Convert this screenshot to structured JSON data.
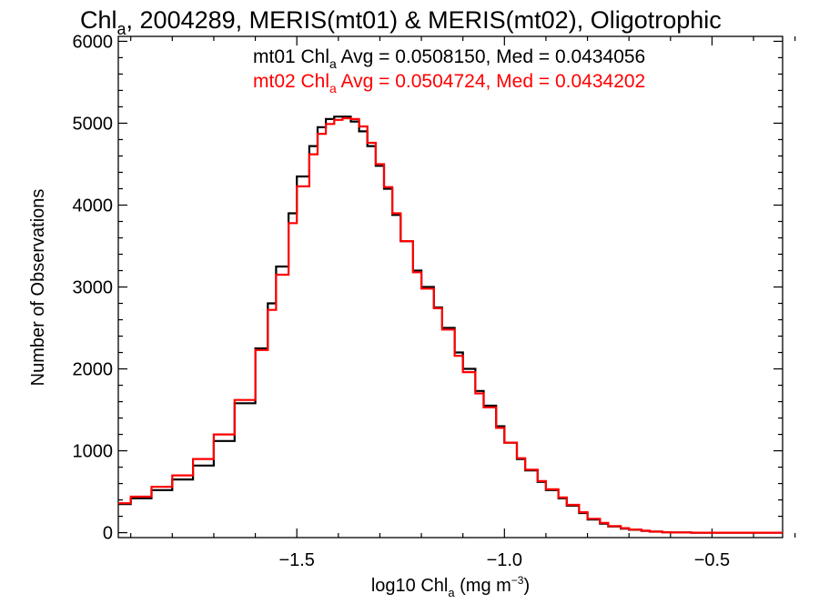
{
  "chart_data": {
    "type": "line",
    "title": {
      "main": "Chl",
      "sub": "a",
      "rest": ", 2004289, MERIS(mt01) & MERIS(mt02), Oligotrophic"
    },
    "xlabel": {
      "main": "log10 Chl",
      "sub": "a",
      "unit_pre": " (mg m",
      "sup": "−3",
      "unit_post": ")"
    },
    "ylabel": "Number of Observations",
    "xlim": [
      -1.93,
      -0.33
    ],
    "ylim": [
      -60,
      6060
    ],
    "xticks": [
      {
        "v": -1.5,
        "label": "−1.5"
      },
      {
        "v": -1.0,
        "label": "−1.0"
      },
      {
        "v": -0.5,
        "label": "−0.5"
      }
    ],
    "yticks": [
      {
        "v": 0,
        "label": "0"
      },
      {
        "v": 1000,
        "label": "1000"
      },
      {
        "v": 2000,
        "label": "2000"
      },
      {
        "v": 3000,
        "label": "3000"
      },
      {
        "v": 4000,
        "label": "4000"
      },
      {
        "v": 5000,
        "label": "5000"
      },
      {
        "v": 6000,
        "label": "6000"
      }
    ],
    "annotations": [
      {
        "pre": "mt01 Chl",
        "sub": "a",
        "post": " Avg = 0.0508150, Med = 0.0434056",
        "color": "#000000"
      },
      {
        "pre": "mt02 Chl",
        "sub": "a",
        "post": " Avg = 0.0504724, Med = 0.0434202",
        "color": "#ff0000"
      }
    ],
    "series": [
      {
        "name": "mt01",
        "color": "#000000",
        "x": [
          -1.93,
          -1.9,
          -1.85,
          -1.8,
          -1.75,
          -1.7,
          -1.65,
          -1.6,
          -1.57,
          -1.55,
          -1.52,
          -1.5,
          -1.47,
          -1.45,
          -1.43,
          -1.41,
          -1.39,
          -1.37,
          -1.35,
          -1.33,
          -1.31,
          -1.29,
          -1.27,
          -1.25,
          -1.22,
          -1.2,
          -1.17,
          -1.15,
          -1.12,
          -1.1,
          -1.07,
          -1.05,
          -1.02,
          -1.0,
          -0.97,
          -0.95,
          -0.92,
          -0.9,
          -0.87,
          -0.85,
          -0.82,
          -0.8,
          -0.77,
          -0.75,
          -0.72,
          -0.7,
          -0.67,
          -0.65,
          -0.62,
          -0.6,
          -0.55,
          -0.5,
          -0.45,
          -0.4,
          -0.33
        ],
        "y": [
          350,
          420,
          520,
          650,
          820,
          1120,
          1580,
          2250,
          2800,
          3250,
          3900,
          4350,
          4720,
          4950,
          5050,
          5080,
          5080,
          5020,
          4900,
          4720,
          4480,
          4200,
          3880,
          3560,
          3200,
          3000,
          2750,
          2500,
          2200,
          2000,
          1730,
          1550,
          1300,
          1100,
          900,
          760,
          620,
          520,
          420,
          330,
          240,
          160,
          110,
          75,
          50,
          35,
          22,
          12,
          5,
          2,
          0,
          0,
          0,
          0,
          0
        ]
      },
      {
        "name": "mt02",
        "color": "#ff0000",
        "x": [
          -1.93,
          -1.9,
          -1.85,
          -1.8,
          -1.75,
          -1.7,
          -1.65,
          -1.6,
          -1.57,
          -1.55,
          -1.52,
          -1.5,
          -1.47,
          -1.45,
          -1.43,
          -1.41,
          -1.39,
          -1.37,
          -1.35,
          -1.33,
          -1.31,
          -1.29,
          -1.27,
          -1.25,
          -1.22,
          -1.2,
          -1.17,
          -1.15,
          -1.12,
          -1.1,
          -1.07,
          -1.05,
          -1.02,
          -1.0,
          -0.97,
          -0.95,
          -0.92,
          -0.9,
          -0.87,
          -0.85,
          -0.82,
          -0.8,
          -0.77,
          -0.75,
          -0.72,
          -0.7,
          -0.67,
          -0.65,
          -0.62,
          -0.6,
          -0.55,
          -0.5,
          -0.45,
          -0.4,
          -0.33
        ],
        "y": [
          360,
          440,
          560,
          700,
          900,
          1200,
          1620,
          2230,
          2720,
          3150,
          3780,
          4230,
          4620,
          4870,
          4990,
          5040,
          5060,
          5050,
          4960,
          4760,
          4500,
          4220,
          3900,
          3560,
          3180,
          2980,
          2740,
          2480,
          2160,
          1960,
          1700,
          1530,
          1280,
          1100,
          910,
          770,
          630,
          530,
          430,
          340,
          250,
          170,
          120,
          80,
          55,
          38,
          24,
          13,
          6,
          2,
          0,
          0,
          0,
          0,
          0
        ]
      }
    ]
  }
}
